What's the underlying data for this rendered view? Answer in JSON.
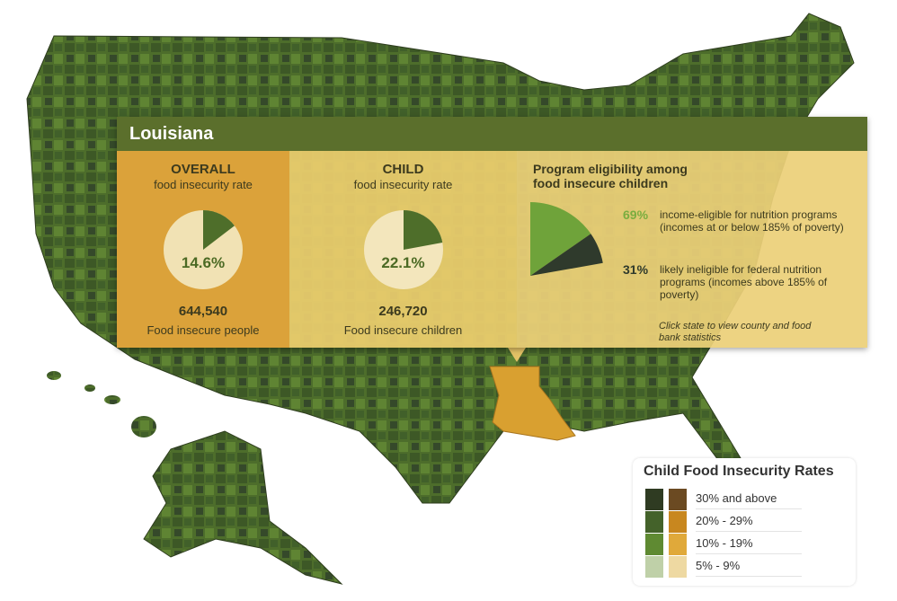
{
  "state": "Louisiana",
  "overall": {
    "title": "OVERALL",
    "subtitle": "food insecurity rate",
    "rate": "14.6%",
    "rate_value": 14.6,
    "count": "644,540",
    "count_label": "Food insecure people"
  },
  "child": {
    "title": "CHILD",
    "subtitle": "food insecurity rate",
    "rate": "22.1%",
    "rate_value": 22.1,
    "count": "246,720",
    "count_label": "Food insecure children"
  },
  "program": {
    "title_line1": "Program eligibility among",
    "title_line2": "food insecure children",
    "eligible_pct": "69%",
    "eligible_value": 69,
    "eligible_text": "income-eligible for nutrition programs (incomes at or below 185% of poverty)",
    "ineligible_pct": "31%",
    "ineligible_value": 31,
    "ineligible_text": "likely ineligible for federal nutrition programs (incomes above 185% of poverty)",
    "note": "Click state to view county and food bank statistics"
  },
  "legend": {
    "title": "Child Food Insecurity Rates",
    "items": [
      "30% and above",
      "20% - 29%",
      "10% - 19%",
      "5% - 9%"
    ],
    "green_colors": [
      "#2f3b22",
      "#44622a",
      "#5f8a32",
      "#bfd0a8"
    ],
    "orange_colors": [
      "#6b4a22",
      "#c8871f",
      "#e0a93a",
      "#eed9a2"
    ]
  },
  "colors": {
    "header": "#5b6f2c",
    "overall_bg": "#dba23a",
    "highlight_state": "#d9a030",
    "map_green": "#4a6a2a"
  }
}
